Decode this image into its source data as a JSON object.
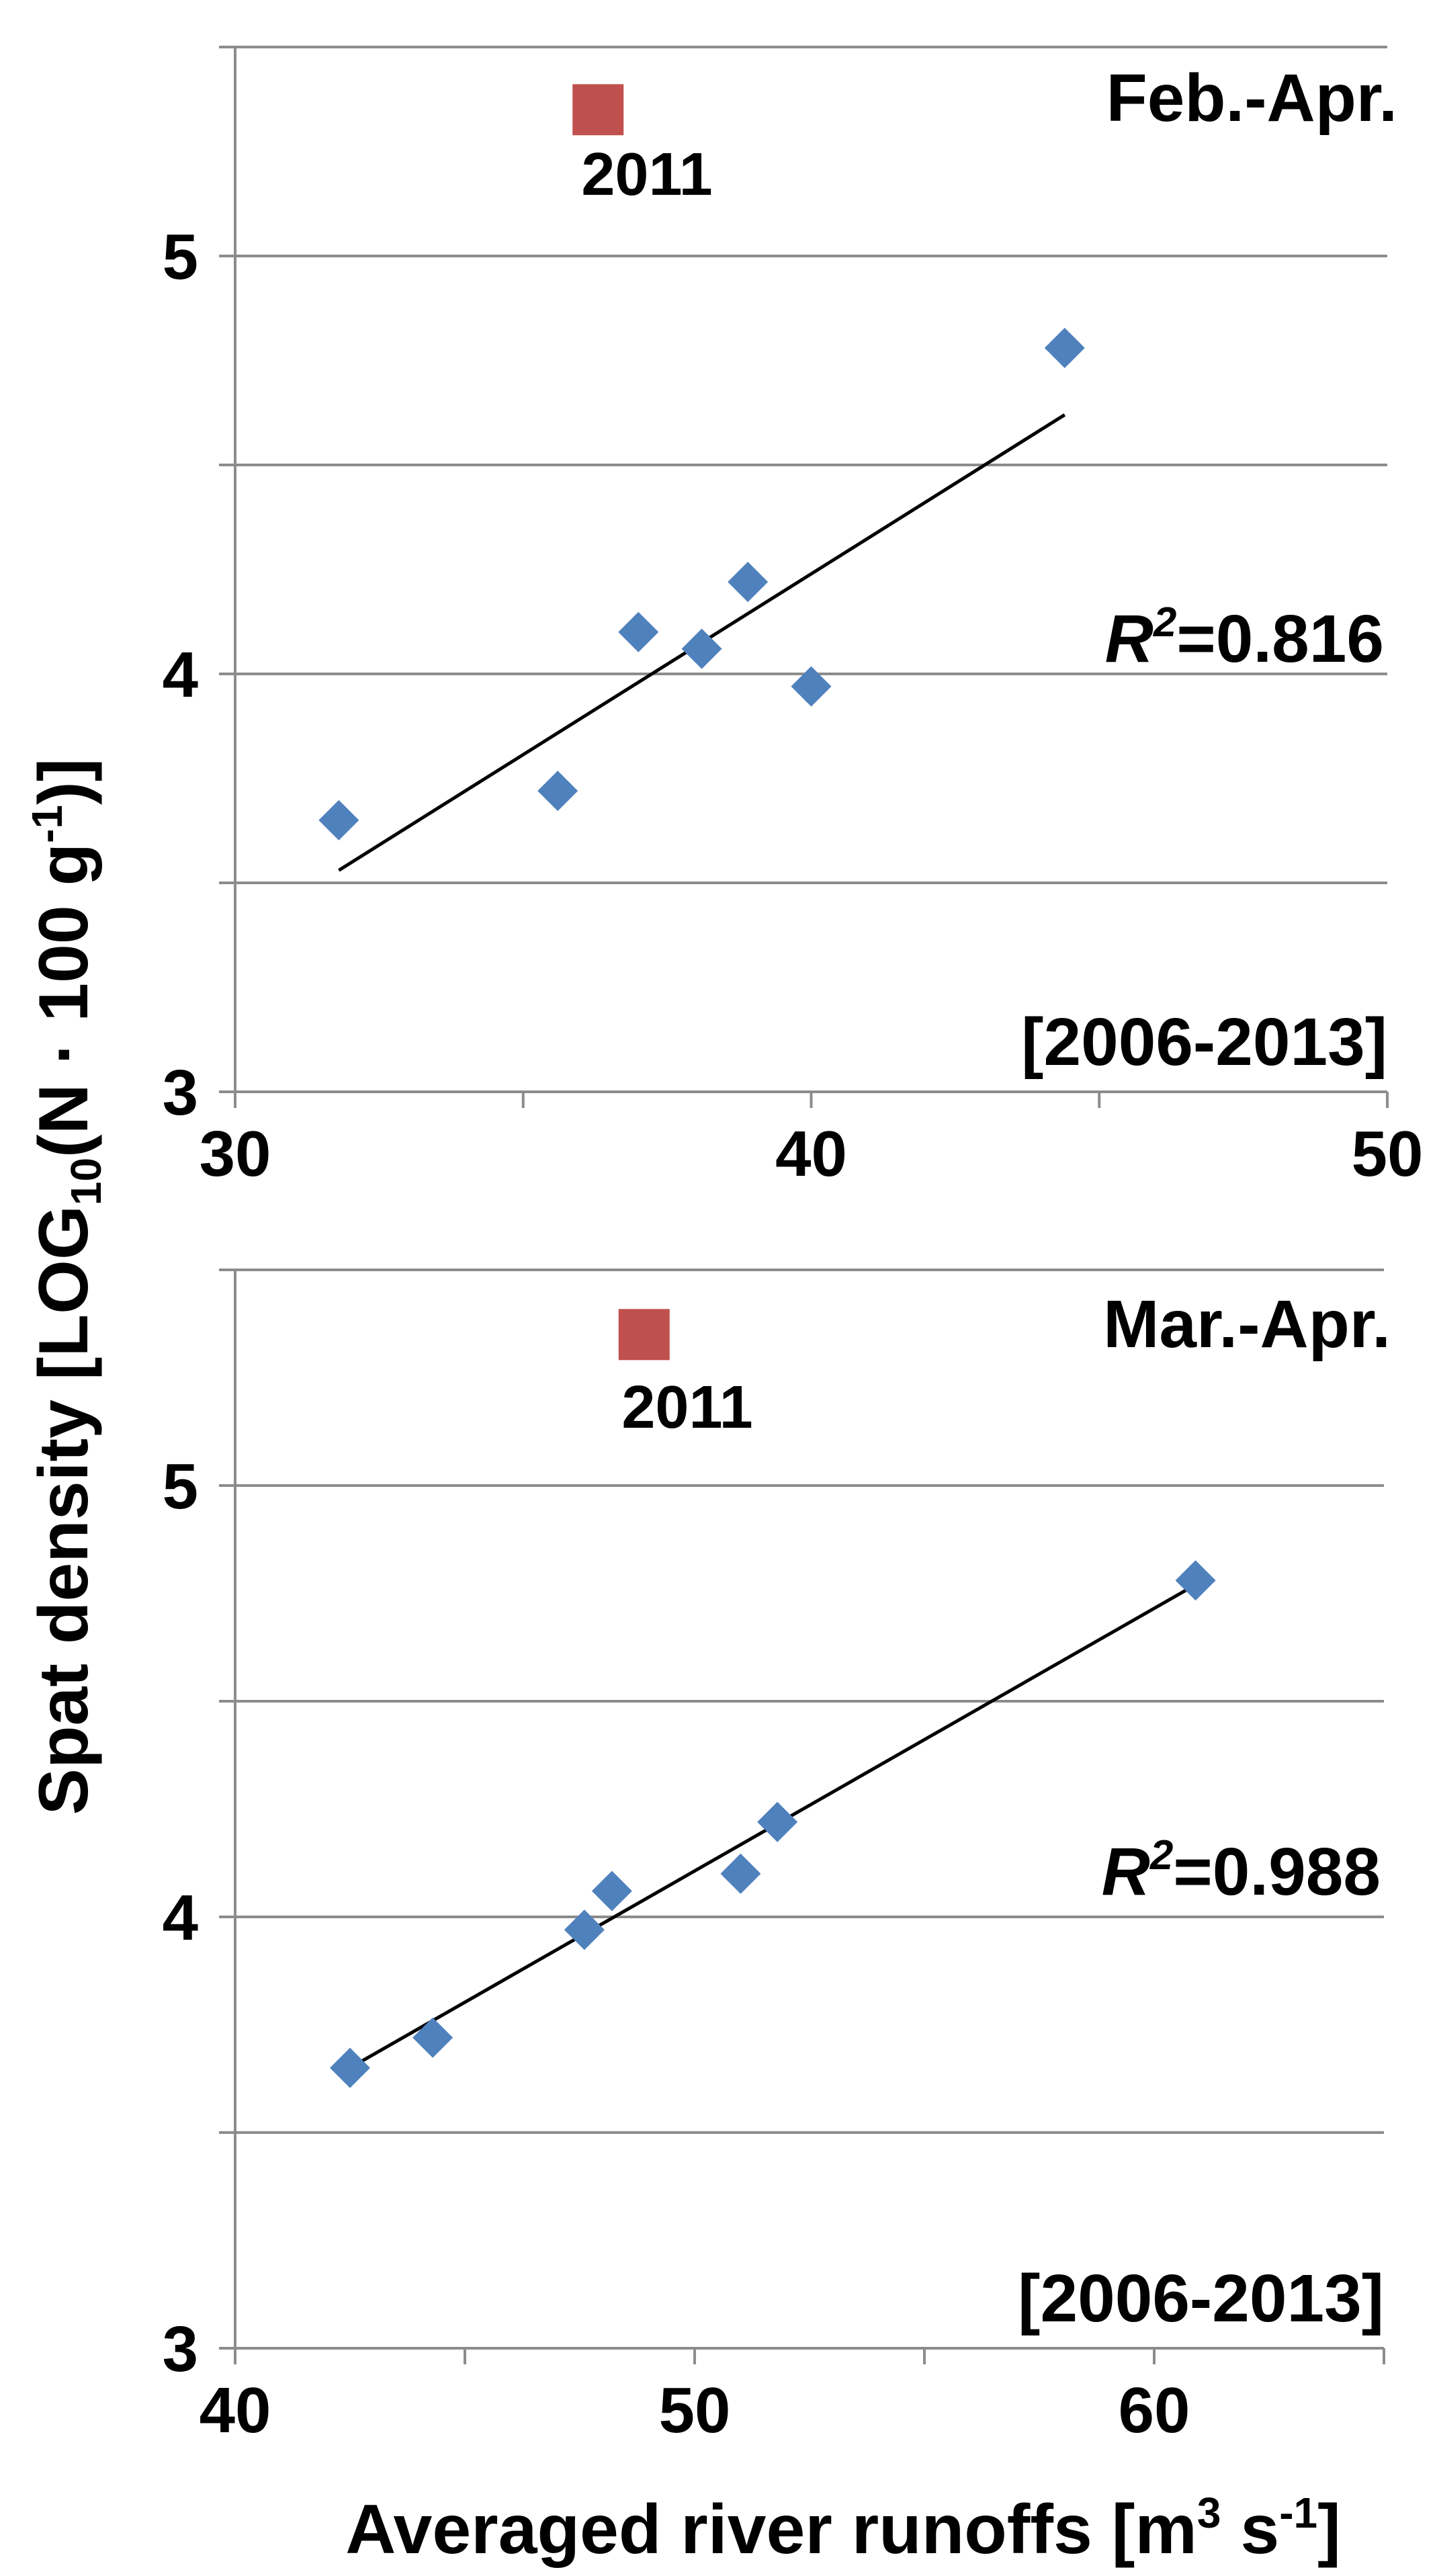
{
  "ylabel_text": "Spat density [LOG",
  "ylabel_sub": "10",
  "ylabel_text2": "(N · 100 g",
  "ylabel_sup": "-1",
  "ylabel_text3": ")]",
  "xlabel_text": "Averaged river runoffs [m",
  "xlabel_sup1": "3",
  "xlabel_text2": " s",
  "xlabel_sup2": "-1",
  "xlabel_text3": "]",
  "colors": {
    "points": "#4F81BD",
    "highlight": "#C0504D",
    "grid": "#8c8c8c",
    "axis": "#8c8c8c",
    "trend": "#000000"
  },
  "chart_data": [
    {
      "type": "scatter",
      "panel_label": "Feb.-Apr.",
      "period_label": "[2006-2013]",
      "r2_label": "R",
      "r2_sup": "2",
      "r2_value": "=0.816",
      "xlim": [
        30,
        50
      ],
      "ylim": [
        3,
        5.5
      ],
      "x_ticks": [
        30,
        40,
        50
      ],
      "x_minor_ticks": [
        35,
        45
      ],
      "y_ticks": [
        3,
        4,
        5
      ],
      "y_grid": [
        3.5,
        4,
        4.5,
        5,
        5.5
      ],
      "grid": true,
      "points": [
        {
          "x": 31.8,
          "y": 3.65
        },
        {
          "x": 35.6,
          "y": 3.72
        },
        {
          "x": 37.0,
          "y": 4.1
        },
        {
          "x": 38.1,
          "y": 4.06
        },
        {
          "x": 38.9,
          "y": 4.22
        },
        {
          "x": 40.0,
          "y": 3.97
        },
        {
          "x": 44.4,
          "y": 4.78
        }
      ],
      "highlight_point": {
        "x": 36.3,
        "y": 5.35,
        "label": "2011"
      },
      "trendline": {
        "x": [
          31.8,
          44.4
        ],
        "y": [
          3.53,
          4.62
        ]
      }
    },
    {
      "type": "scatter",
      "panel_label": "Mar.-Apr.",
      "period_label": "[2006-2013]",
      "r2_label": "R",
      "r2_sup": "2",
      "r2_value": "=0.988",
      "xlim": [
        40,
        65
      ],
      "ylim": [
        3,
        5.5
      ],
      "x_ticks": [
        40,
        50,
        60
      ],
      "x_minor_ticks": [
        45,
        55,
        65
      ],
      "y_ticks": [
        3,
        4,
        5
      ],
      "y_grid": [
        3.5,
        4,
        4.5,
        5,
        5.5
      ],
      "grid": true,
      "points": [
        {
          "x": 42.5,
          "y": 3.65
        },
        {
          "x": 44.3,
          "y": 3.72
        },
        {
          "x": 47.6,
          "y": 3.97
        },
        {
          "x": 48.2,
          "y": 4.06
        },
        {
          "x": 51.0,
          "y": 4.1
        },
        {
          "x": 51.8,
          "y": 4.22
        },
        {
          "x": 60.9,
          "y": 4.78
        }
      ],
      "highlight_point": {
        "x": 48.9,
        "y": 5.35,
        "label": "2011"
      },
      "trendline": {
        "x": [
          42.5,
          60.9
        ],
        "y": [
          3.65,
          4.77
        ]
      }
    }
  ]
}
